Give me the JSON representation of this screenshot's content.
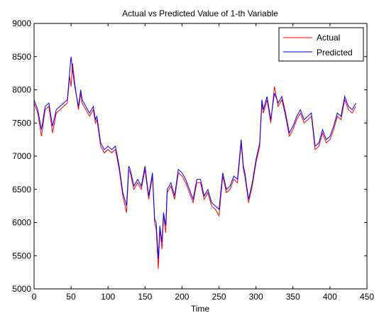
{
  "chart_data": {
    "type": "line",
    "title": "Actual vs Predicted Value of 1-th Variable",
    "xlabel": "Time",
    "ylabel": "",
    "xlim": [
      0,
      450
    ],
    "ylim": [
      5000,
      9000
    ],
    "xticks": [
      0,
      50,
      100,
      150,
      200,
      250,
      300,
      350,
      400,
      450
    ],
    "yticks": [
      5000,
      5500,
      6000,
      6500,
      7000,
      7500,
      8000,
      8500,
      9000
    ],
    "grid": false,
    "legend_position": "top-right",
    "x": [
      0,
      5,
      10,
      15,
      20,
      25,
      30,
      35,
      40,
      45,
      48,
      50,
      52,
      55,
      60,
      63,
      65,
      70,
      75,
      80,
      83,
      85,
      90,
      95,
      100,
      105,
      110,
      115,
      120,
      125,
      128,
      130,
      135,
      140,
      145,
      150,
      155,
      160,
      163,
      165,
      168,
      170,
      173,
      175,
      178,
      180,
      185,
      190,
      195,
      200,
      205,
      210,
      215,
      220,
      225,
      230,
      235,
      240,
      245,
      250,
      255,
      260,
      265,
      270,
      275,
      280,
      283,
      285,
      290,
      295,
      300,
      305,
      308,
      310,
      315,
      320,
      325,
      330,
      335,
      340,
      345,
      350,
      355,
      360,
      365,
      370,
      375,
      380,
      385,
      390,
      395,
      400,
      405,
      410,
      415,
      420,
      425,
      430,
      435
    ],
    "series": [
      {
        "name": "Actual",
        "color": "#ff0000",
        "values": [
          7800,
          7650,
          7300,
          7700,
          7750,
          7350,
          7650,
          7700,
          7750,
          7800,
          8200,
          8050,
          8400,
          8100,
          7700,
          7950,
          7800,
          7700,
          7600,
          7700,
          7500,
          7550,
          7150,
          7050,
          7100,
          7050,
          7100,
          6800,
          6400,
          6150,
          6800,
          6750,
          6500,
          6600,
          6500,
          6800,
          6350,
          6700,
          6000,
          5900,
          5300,
          5900,
          5600,
          6100,
          5850,
          6450,
          6550,
          6350,
          6750,
          6700,
          6600,
          6450,
          6300,
          6600,
          6600,
          6350,
          6450,
          6250,
          6200,
          6100,
          6700,
          6450,
          6500,
          6650,
          6600,
          7200,
          6800,
          6700,
          6300,
          6550,
          6900,
          7150,
          7800,
          7650,
          7850,
          7500,
          8050,
          7750,
          7850,
          7600,
          7300,
          7400,
          7550,
          7650,
          7500,
          7550,
          7600,
          7100,
          7150,
          7350,
          7200,
          7250,
          7400,
          7600,
          7550,
          7850,
          7700,
          7650,
          7750
        ]
      },
      {
        "name": "Predicted",
        "color": "#0000ff",
        "values": [
          7850,
          7700,
          7400,
          7750,
          7800,
          7450,
          7700,
          7750,
          7800,
          7850,
          8250,
          8500,
          8300,
          8050,
          7750,
          8000,
          7850,
          7750,
          7650,
          7750,
          7550,
          7600,
          7200,
          7100,
          7150,
          7100,
          7150,
          6850,
          6450,
          6250,
          6850,
          6800,
          6550,
          6650,
          6550,
          6850,
          6400,
          6750,
          6050,
          6000,
          5450,
          5950,
          5700,
          6150,
          5950,
          6500,
          6600,
          6400,
          6800,
          6750,
          6650,
          6500,
          6350,
          6650,
          6650,
          6400,
          6500,
          6300,
          6250,
          6200,
          6750,
          6500,
          6550,
          6700,
          6650,
          7250,
          6850,
          6750,
          6350,
          6600,
          6950,
          7200,
          7850,
          7700,
          7900,
          7550,
          7950,
          7800,
          7900,
          7650,
          7350,
          7450,
          7600,
          7700,
          7550,
          7600,
          7650,
          7150,
          7200,
          7400,
          7250,
          7300,
          7450,
          7650,
          7600,
          7900,
          7750,
          7700,
          7800
        ]
      }
    ]
  }
}
